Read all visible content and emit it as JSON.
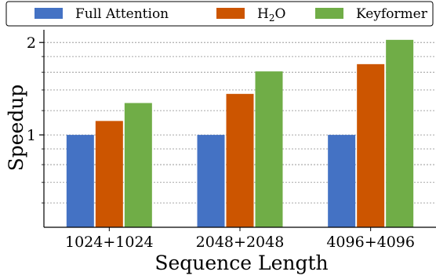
{
  "chart_data": {
    "type": "bar",
    "title": "",
    "xlabel": "Sequence Length",
    "ylabel": "Speedup",
    "categories": [
      "1024+1024",
      "2048+2048",
      "4096+4096"
    ],
    "series": [
      {
        "name": "Full Attention",
        "color": "#4472C4",
        "values": [
          1.0,
          1.0,
          1.0
        ]
      },
      {
        "name": "H2O",
        "color": "#CC5500",
        "values": [
          1.11,
          1.36,
          1.7
        ]
      },
      {
        "name": "Keyformer",
        "color": "#70AD47",
        "values": [
          1.27,
          1.61,
          2.04
        ]
      }
    ],
    "yscale": "log",
    "ylim": [
      0.5,
      2.2
    ],
    "yticks_major": [
      1,
      2
    ],
    "ytick_labels": [
      "1",
      "2"
    ],
    "yticks_minor": [
      0.6,
      0.7,
      0.8,
      0.9,
      1.2,
      1.4,
      1.6,
      1.8
    ],
    "grid": "horizontal-dotted",
    "legend": "top"
  }
}
